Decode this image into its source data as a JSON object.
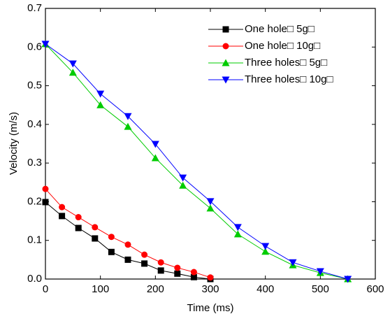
{
  "chart_data": {
    "type": "line",
    "x_label": "Time (ms)",
    "y_label": "Velocity (m/s)",
    "xlim": [
      0,
      600
    ],
    "xticks": [
      0,
      100,
      200,
      300,
      400,
      500,
      600
    ],
    "ylim": [
      0,
      0.7
    ],
    "yticks": [
      {
        "value": 0,
        "label": "0.0"
      },
      0.1,
      0.2,
      0.3,
      0.4,
      0.5,
      0.6,
      0.7
    ],
    "legend": "upper right",
    "series": [
      {
        "name": "One hole□ 5g□",
        "color": "#000000",
        "marker": "square",
        "x": [
          0,
          30,
          60,
          90,
          120,
          150,
          180,
          210,
          240,
          270,
          300
        ],
        "values": [
          0.199,
          0.163,
          0.132,
          0.105,
          0.07,
          0.05,
          0.04,
          0.022,
          0.014,
          0.005,
          0
        ]
      },
      {
        "name": "One hole□ 10g□",
        "color": "#ff0000",
        "marker": "circle",
        "x": [
          0,
          30,
          60,
          90,
          120,
          150,
          180,
          210,
          240,
          270,
          300
        ],
        "values": [
          0.233,
          0.186,
          0.16,
          0.134,
          0.109,
          0.089,
          0.063,
          0.043,
          0.029,
          0.018,
          0.004
        ]
      },
      {
        "name": "Three holes□ 5g□",
        "color": "#00cc00",
        "marker": "triangle-up",
        "x": [
          0,
          50,
          100,
          150,
          200,
          250,
          300,
          350,
          400,
          450,
          500,
          550
        ],
        "values": [
          0.608,
          0.534,
          0.45,
          0.394,
          0.313,
          0.242,
          0.183,
          0.116,
          0.071,
          0.036,
          0.016,
          0
        ]
      },
      {
        "name": "Three holes□ 10g□",
        "color": "#0000ff",
        "marker": "triangle-down",
        "x": [
          0,
          50,
          100,
          150,
          200,
          250,
          300,
          350,
          400,
          450,
          500,
          550
        ],
        "values": [
          0.608,
          0.557,
          0.479,
          0.421,
          0.349,
          0.262,
          0.201,
          0.134,
          0.085,
          0.043,
          0.02,
          0
        ]
      }
    ]
  }
}
